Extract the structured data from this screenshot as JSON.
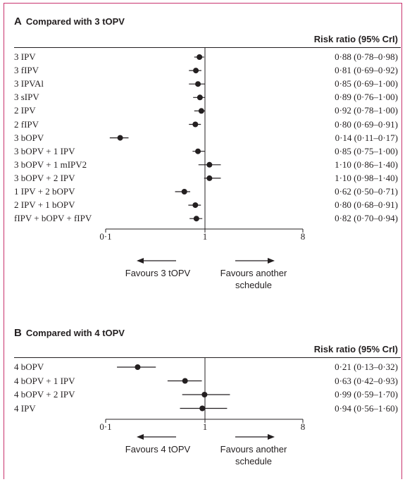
{
  "chart_data": [
    {
      "type": "forest",
      "panel": "A",
      "title": "Compared with 3 tOPV",
      "column_header": "Risk ratio (95% CrI)",
      "x_scale": "log",
      "xlim": [
        0.1,
        8
      ],
      "ticks": [
        "0·1",
        "1",
        "8"
      ],
      "tick_values": [
        0.1,
        1,
        8
      ],
      "reference_line": 1,
      "favours_left": "Favours 3 tOPV",
      "favours_right": [
        "Favours another",
        "schedule"
      ],
      "rows": [
        {
          "label": "3 IPV",
          "rr": 0.88,
          "lo": 0.78,
          "hi": 0.98,
          "text": "0·88 (0·78–0·98)"
        },
        {
          "label": "3 fIPV",
          "rr": 0.81,
          "lo": 0.69,
          "hi": 0.92,
          "text": "0·81 (0·69–0·92)"
        },
        {
          "label": "3 IPVAl",
          "rr": 0.85,
          "lo": 0.69,
          "hi": 1.0,
          "text": "0·85 (0·69–1·00)"
        },
        {
          "label": "3 sIPV",
          "rr": 0.89,
          "lo": 0.76,
          "hi": 1.0,
          "text": "0·89 (0·76–1·00)"
        },
        {
          "label": "2 IPV",
          "rr": 0.92,
          "lo": 0.78,
          "hi": 1.0,
          "text": "0·92 (0·78–1·00)"
        },
        {
          "label": "2 fIPV",
          "rr": 0.8,
          "lo": 0.69,
          "hi": 0.91,
          "text": "0·80 (0·69–0·91)"
        },
        {
          "label": "3 bOPV",
          "rr": 0.14,
          "lo": 0.11,
          "hi": 0.17,
          "text": "0·14 (0·11–0·17)"
        },
        {
          "label": "3 bOPV + 1 IPV",
          "rr": 0.85,
          "lo": 0.75,
          "hi": 1.0,
          "text": "0·85 (0·75–1·00)"
        },
        {
          "label": "3 bOPV + 1 mIPV2",
          "rr": 1.1,
          "lo": 0.86,
          "hi": 1.4,
          "text": "1·10 (0·86–1·40)"
        },
        {
          "label": "3 bOPV + 2 IPV",
          "rr": 1.1,
          "lo": 0.98,
          "hi": 1.4,
          "text": "1·10 (0·98–1·40)"
        },
        {
          "label": "1 IPV + 2 bOPV",
          "rr": 0.62,
          "lo": 0.5,
          "hi": 0.71,
          "text": "0·62 (0·50–0·71)"
        },
        {
          "label": "2 IPV + 1 bOPV",
          "rr": 0.8,
          "lo": 0.68,
          "hi": 0.91,
          "text": "0·80 (0·68–0·91)"
        },
        {
          "label": "fIPV + bOPV + fIPV",
          "rr": 0.82,
          "lo": 0.7,
          "hi": 0.94,
          "text": "0·82 (0·70–0·94)"
        }
      ]
    },
    {
      "type": "forest",
      "panel": "B",
      "title": "Compared with 4 tOPV",
      "column_header": "Risk ratio (95% CrI)",
      "x_scale": "log",
      "xlim": [
        0.1,
        8
      ],
      "ticks": [
        "0·1",
        "1",
        "8"
      ],
      "tick_values": [
        0.1,
        1,
        8
      ],
      "reference_line": 1,
      "favours_left": "Favours 4 tOPV",
      "favours_right": [
        "Favours another",
        "schedule"
      ],
      "rows": [
        {
          "label": "4 bOPV",
          "rr": 0.21,
          "lo": 0.13,
          "hi": 0.32,
          "text": "0·21 (0·13–0·32)"
        },
        {
          "label": "4 bOPV + 1 IPV",
          "rr": 0.63,
          "lo": 0.42,
          "hi": 0.93,
          "text": "0·63 (0·42–0·93)"
        },
        {
          "label": "4 bOPV + 2 IPV",
          "rr": 0.99,
          "lo": 0.59,
          "hi": 1.7,
          "text": "0·99 (0·59–1·70)"
        },
        {
          "label": "4 IPV",
          "rr": 0.94,
          "lo": 0.56,
          "hi": 1.6,
          "text": "0·94 (0·56–1·60)"
        }
      ]
    }
  ],
  "frame_color": "#c8336e",
  "ink_color": "#231f20"
}
